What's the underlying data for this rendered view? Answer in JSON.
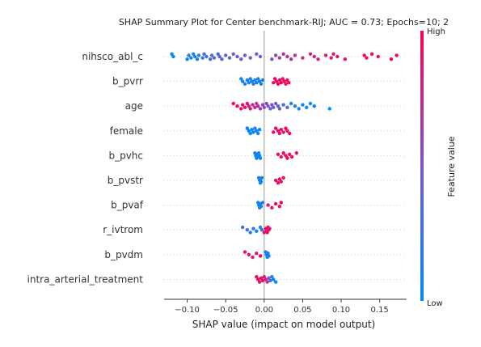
{
  "chart_data": {
    "type": "scatter",
    "title": "SHAP Summary Plot for Center benchmark-RIJ; AUC = 0.73; Epochs=10; 2",
    "xlabel": "SHAP value (impact on model output)",
    "xlim": [
      -0.13,
      0.185
    ],
    "xticks": [
      -0.1,
      -0.05,
      0.0,
      0.05,
      0.1,
      0.15
    ],
    "xtick_labels": [
      "−0.10",
      "−0.05",
      "0.00",
      "0.05",
      "0.10",
      "0.15"
    ],
    "colorbar": {
      "label": "Feature value",
      "high": "High",
      "low": "Low",
      "low_color": "#008bfb",
      "high_color": "#ff0052"
    },
    "features": [
      {
        "name": "nihsco_abl_c",
        "points": [
          [
            -0.12,
            0.1
          ],
          [
            -0.118,
            0.0
          ],
          [
            -0.1,
            0.05
          ],
          [
            -0.098,
            0.2
          ],
          [
            -0.095,
            0.1
          ],
          [
            -0.092,
            0.15
          ],
          [
            -0.09,
            0.0
          ],
          [
            -0.087,
            0.1
          ],
          [
            -0.085,
            0.25
          ],
          [
            -0.08,
            0.2
          ],
          [
            -0.078,
            0.3
          ],
          [
            -0.075,
            0.25
          ],
          [
            -0.07,
            0.3
          ],
          [
            -0.068,
            0.35
          ],
          [
            -0.065,
            0.4
          ],
          [
            -0.06,
            0.3
          ],
          [
            -0.058,
            0.35
          ],
          [
            -0.055,
            0.4
          ],
          [
            -0.05,
            0.35
          ],
          [
            -0.045,
            0.4
          ],
          [
            -0.04,
            0.45
          ],
          [
            -0.035,
            0.4
          ],
          [
            -0.03,
            0.45
          ],
          [
            -0.025,
            0.45
          ],
          [
            -0.018,
            0.5
          ],
          [
            -0.01,
            0.5
          ],
          [
            -0.005,
            0.5
          ],
          [
            0.01,
            0.55
          ],
          [
            0.015,
            0.6
          ],
          [
            0.02,
            0.65
          ],
          [
            0.025,
            0.7
          ],
          [
            0.03,
            0.7
          ],
          [
            0.035,
            0.7
          ],
          [
            0.04,
            0.75
          ],
          [
            0.05,
            0.75
          ],
          [
            0.06,
            0.8
          ],
          [
            0.065,
            0.8
          ],
          [
            0.07,
            0.8
          ],
          [
            0.08,
            0.85
          ],
          [
            0.087,
            0.85
          ],
          [
            0.09,
            0.85
          ],
          [
            0.095,
            0.85
          ],
          [
            0.105,
            0.9
          ],
          [
            0.13,
            0.95
          ],
          [
            0.133,
            0.9
          ],
          [
            0.14,
            0.95
          ],
          [
            0.148,
            0.95
          ],
          [
            0.165,
            1.0
          ],
          [
            0.172,
            1.0
          ]
        ]
      },
      {
        "name": "b_pvrr",
        "points": [
          [
            -0.03,
            0.1
          ],
          [
            -0.028,
            0.0
          ],
          [
            -0.025,
            0.15
          ],
          [
            -0.022,
            0.0
          ],
          [
            -0.02,
            0.1
          ],
          [
            -0.018,
            0.2
          ],
          [
            -0.016,
            0.05
          ],
          [
            -0.014,
            0.15
          ],
          [
            -0.012,
            0.0
          ],
          [
            -0.01,
            0.1
          ],
          [
            -0.008,
            0.2
          ],
          [
            -0.006,
            0.05
          ],
          [
            -0.004,
            0.15
          ],
          [
            -0.002,
            0.1
          ],
          [
            0.012,
            0.9
          ],
          [
            0.014,
            1.0
          ],
          [
            0.016,
            0.85
          ],
          [
            0.018,
            0.95
          ],
          [
            0.02,
            0.9
          ],
          [
            0.022,
            1.0
          ],
          [
            0.024,
            0.85
          ],
          [
            0.026,
            0.95
          ],
          [
            0.028,
            0.9
          ],
          [
            0.03,
            1.0
          ],
          [
            0.032,
            0.9
          ]
        ]
      },
      {
        "name": "age",
        "points": [
          [
            -0.04,
            1.0
          ],
          [
            -0.035,
            0.95
          ],
          [
            -0.03,
            0.9
          ],
          [
            -0.028,
            0.95
          ],
          [
            -0.025,
            0.85
          ],
          [
            -0.022,
            0.9
          ],
          [
            -0.02,
            0.8
          ],
          [
            -0.018,
            0.85
          ],
          [
            -0.015,
            0.75
          ],
          [
            -0.012,
            0.8
          ],
          [
            -0.01,
            0.7
          ],
          [
            -0.008,
            0.75
          ],
          [
            -0.005,
            0.65
          ],
          [
            -0.002,
            0.6
          ],
          [
            0.0,
            0.55
          ],
          [
            0.003,
            0.6
          ],
          [
            0.005,
            0.5
          ],
          [
            0.008,
            0.45
          ],
          [
            0.01,
            0.5
          ],
          [
            0.012,
            0.4
          ],
          [
            0.015,
            0.45
          ],
          [
            0.018,
            0.35
          ],
          [
            0.02,
            0.4
          ],
          [
            0.025,
            0.3
          ],
          [
            0.03,
            0.25
          ],
          [
            0.035,
            0.2
          ],
          [
            0.04,
            0.15
          ],
          [
            0.045,
            0.1
          ],
          [
            0.05,
            0.1
          ],
          [
            0.055,
            0.05
          ],
          [
            0.06,
            0.05
          ],
          [
            0.065,
            0.0
          ],
          [
            0.085,
            0.0
          ]
        ]
      },
      {
        "name": "female",
        "points": [
          [
            -0.022,
            0.1
          ],
          [
            -0.02,
            0.05
          ],
          [
            -0.018,
            0.0
          ],
          [
            -0.016,
            0.1
          ],
          [
            -0.014,
            0.05
          ],
          [
            -0.012,
            0.15
          ],
          [
            -0.01,
            0.0
          ],
          [
            -0.008,
            0.1
          ],
          [
            -0.006,
            0.05
          ],
          [
            0.012,
            0.95
          ],
          [
            0.015,
            0.9
          ],
          [
            0.018,
            1.0
          ],
          [
            0.02,
            0.9
          ],
          [
            0.022,
            0.95
          ],
          [
            0.025,
            0.85
          ],
          [
            0.028,
            1.0
          ],
          [
            0.03,
            0.9
          ],
          [
            0.033,
            0.95
          ]
        ]
      },
      {
        "name": "b_pvhc",
        "points": [
          [
            -0.012,
            0.1
          ],
          [
            -0.011,
            0.05
          ],
          [
            -0.01,
            0.0
          ],
          [
            -0.009,
            0.1
          ],
          [
            -0.008,
            0.05
          ],
          [
            -0.007,
            0.15
          ],
          [
            -0.006,
            0.0
          ],
          [
            -0.005,
            0.1
          ],
          [
            0.018,
            0.95
          ],
          [
            0.022,
            0.9
          ],
          [
            0.025,
            1.0
          ],
          [
            0.028,
            0.85
          ],
          [
            0.03,
            0.95
          ],
          [
            0.033,
            0.9
          ],
          [
            0.036,
            1.0
          ],
          [
            0.042,
            0.9
          ]
        ]
      },
      {
        "name": "b_pvstr",
        "points": [
          [
            -0.007,
            0.1
          ],
          [
            -0.006,
            0.05
          ],
          [
            -0.005,
            0.0
          ],
          [
            -0.005,
            0.15
          ],
          [
            -0.004,
            0.1
          ],
          [
            -0.003,
            0.05
          ],
          [
            0.015,
            0.95
          ],
          [
            0.018,
            0.9
          ],
          [
            0.02,
            1.0
          ],
          [
            0.022,
            0.85
          ],
          [
            0.025,
            0.95
          ]
        ]
      },
      {
        "name": "b_pvaf",
        "points": [
          [
            -0.008,
            0.1
          ],
          [
            -0.007,
            0.0
          ],
          [
            -0.006,
            0.15
          ],
          [
            -0.005,
            0.05
          ],
          [
            -0.004,
            0.1
          ],
          [
            -0.002,
            0.2
          ],
          [
            0.005,
            0.85
          ],
          [
            0.01,
            0.9
          ],
          [
            0.015,
            0.95
          ],
          [
            0.02,
            0.9
          ],
          [
            0.022,
            1.0
          ]
        ]
      },
      {
        "name": "r_ivtrom",
        "points": [
          [
            -0.028,
            0.3
          ],
          [
            -0.022,
            0.2
          ],
          [
            -0.018,
            0.1
          ],
          [
            -0.014,
            0.15
          ],
          [
            -0.01,
            0.05
          ],
          [
            -0.005,
            0.2
          ],
          [
            -0.003,
            0.1
          ],
          [
            0.0,
            0.9
          ],
          [
            0.002,
            0.95
          ],
          [
            0.003,
            0.85
          ],
          [
            0.005,
            1.0
          ],
          [
            0.006,
            0.9
          ],
          [
            0.004,
            0.95
          ],
          [
            0.007,
            0.85
          ]
        ]
      },
      {
        "name": "b_pvdm",
        "points": [
          [
            -0.025,
            0.9
          ],
          [
            -0.02,
            0.95
          ],
          [
            -0.015,
            0.85
          ],
          [
            -0.01,
            0.9
          ],
          [
            -0.005,
            1.0
          ],
          [
            0.002,
            0.1
          ],
          [
            0.003,
            0.05
          ],
          [
            0.004,
            0.0
          ],
          [
            0.005,
            0.15
          ],
          [
            0.006,
            0.1
          ]
        ]
      },
      {
        "name": "intra_arterial_treatment",
        "points": [
          [
            -0.01,
            0.9
          ],
          [
            -0.008,
            0.95
          ],
          [
            -0.006,
            0.85
          ],
          [
            -0.004,
            1.0
          ],
          [
            -0.002,
            0.9
          ],
          [
            0.0,
            0.8
          ],
          [
            0.002,
            0.85
          ],
          [
            0.004,
            0.7
          ],
          [
            0.006,
            0.5
          ],
          [
            0.008,
            0.3
          ],
          [
            0.01,
            0.15
          ],
          [
            0.012,
            0.05
          ],
          [
            0.015,
            0.0
          ]
        ]
      }
    ]
  }
}
